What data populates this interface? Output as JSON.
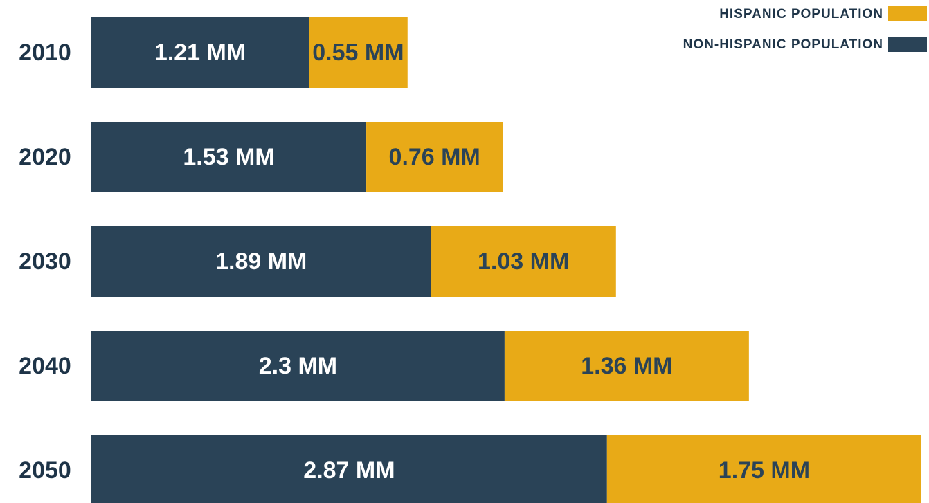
{
  "chart_data": {
    "type": "stacked-bar-horizontal",
    "categories": [
      "2010",
      "2020",
      "2030",
      "2040",
      "2050"
    ],
    "series": [
      {
        "name": "NON-HISPANIC POPULATION",
        "color": "#2a4357",
        "label_color": "#ffffff",
        "values": [
          1.21,
          1.53,
          1.89,
          2.3,
          2.87
        ],
        "value_labels": [
          "1.21 MM",
          "1.53 MM",
          "1.89 MM",
          "2.3 MM",
          "2.87 MM"
        ]
      },
      {
        "name": "HISPANIC POPULATION",
        "color": "#e8aa17",
        "label_color": "#2a4357",
        "values": [
          0.55,
          0.76,
          1.03,
          1.36,
          1.75
        ],
        "value_labels": [
          "0.55 MM",
          "0.76 MM",
          "1.03 MM",
          "1.36 MM",
          "1.75 MM"
        ]
      }
    ],
    "xlim": [
      0,
      4.62
    ],
    "legend": "top-right"
  }
}
